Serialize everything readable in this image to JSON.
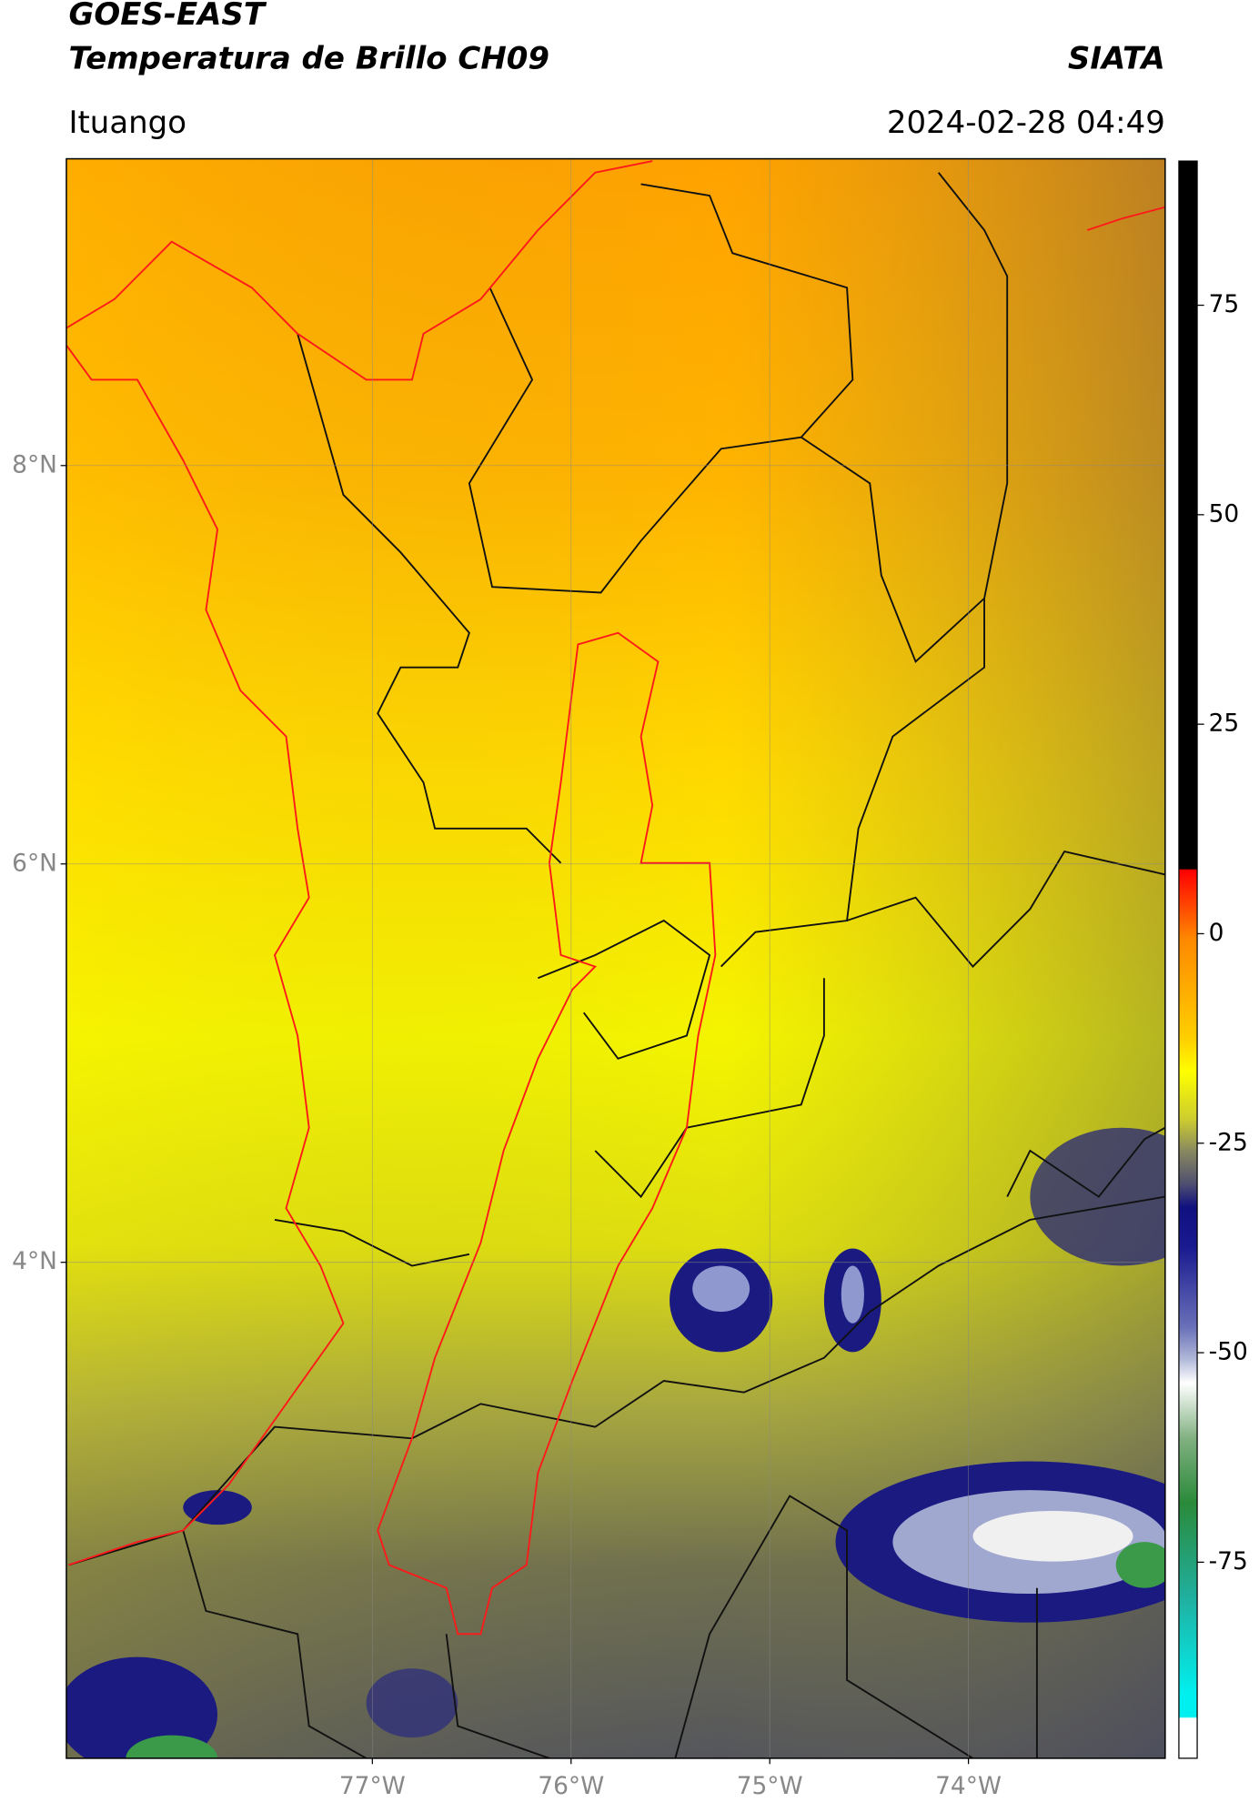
{
  "header": {
    "title": "GOES-EAST",
    "subtitle": "Temperatura de Brillo CH09",
    "org": "SIATA",
    "location": "Ituango",
    "timestamp": "2024-02-28 04:49"
  },
  "map": {
    "xlim": [
      -78.54,
      -73.01
    ],
    "ylim": [
      1.51,
      9.54
    ],
    "xticks": [
      {
        "value": -77,
        "label": "77°W"
      },
      {
        "value": -76,
        "label": "76°W"
      },
      {
        "value": -75,
        "label": "75°W"
      },
      {
        "value": -74,
        "label": "74°W"
      }
    ],
    "yticks": [
      {
        "value": 8,
        "label": "8°N"
      },
      {
        "value": 6,
        "label": "6°N"
      },
      {
        "value": 4,
        "label": "4°N"
      }
    ],
    "grid": true
  },
  "colorbar": {
    "lim": [
      -98.4,
      92.2
    ],
    "ticks": [
      75,
      50,
      25,
      0,
      -25,
      -50,
      -75
    ]
  }
}
